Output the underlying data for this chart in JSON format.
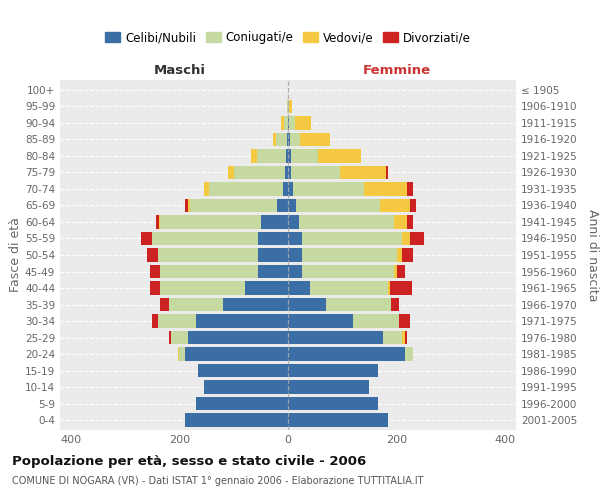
{
  "age_groups": [
    "0-4",
    "5-9",
    "10-14",
    "15-19",
    "20-24",
    "25-29",
    "30-34",
    "35-39",
    "40-44",
    "45-49",
    "50-54",
    "55-59",
    "60-64",
    "65-69",
    "70-74",
    "75-79",
    "80-84",
    "85-89",
    "90-94",
    "95-99",
    "100+"
  ],
  "birth_years": [
    "2001-2005",
    "1996-2000",
    "1991-1995",
    "1986-1990",
    "1981-1985",
    "1976-1980",
    "1971-1975",
    "1966-1970",
    "1961-1965",
    "1956-1960",
    "1951-1955",
    "1946-1950",
    "1941-1945",
    "1936-1940",
    "1931-1935",
    "1926-1930",
    "1921-1925",
    "1916-1920",
    "1911-1915",
    "1906-1910",
    "≤ 1905"
  ],
  "males": {
    "celibi": [
      190,
      170,
      155,
      165,
      190,
      185,
      170,
      120,
      80,
      55,
      55,
      55,
      50,
      20,
      10,
      5,
      3,
      2,
      0,
      0,
      0
    ],
    "coniugati": [
      0,
      0,
      0,
      0,
      10,
      30,
      70,
      100,
      155,
      180,
      185,
      195,
      185,
      160,
      135,
      95,
      55,
      20,
      8,
      2,
      0
    ],
    "vedovi": [
      0,
      0,
      0,
      0,
      3,
      0,
      0,
      0,
      0,
      0,
      0,
      0,
      3,
      5,
      10,
      10,
      10,
      5,
      5,
      0,
      0
    ],
    "divorziati": [
      0,
      0,
      0,
      0,
      0,
      5,
      10,
      15,
      20,
      20,
      20,
      20,
      5,
      5,
      0,
      0,
      0,
      0,
      0,
      0,
      0
    ]
  },
  "females": {
    "nubili": [
      185,
      165,
      150,
      165,
      215,
      175,
      120,
      70,
      40,
      25,
      25,
      25,
      20,
      15,
      10,
      5,
      5,
      3,
      2,
      0,
      0
    ],
    "coniugate": [
      0,
      0,
      0,
      0,
      15,
      35,
      85,
      120,
      145,
      170,
      175,
      185,
      175,
      155,
      130,
      90,
      50,
      20,
      10,
      2,
      0
    ],
    "vedove": [
      0,
      0,
      0,
      0,
      0,
      5,
      0,
      0,
      3,
      5,
      10,
      15,
      25,
      55,
      80,
      85,
      80,
      55,
      30,
      5,
      0
    ],
    "divorziate": [
      0,
      0,
      0,
      0,
      0,
      5,
      20,
      15,
      40,
      15,
      20,
      25,
      10,
      10,
      10,
      5,
      0,
      0,
      0,
      0,
      0
    ]
  },
  "colors": {
    "celibi": "#3a6ea5",
    "coniugati": "#c5d9a0",
    "vedovi": "#f5c842",
    "divorziati": "#cc2222"
  },
  "title": "Popolazione per età, sesso e stato civile - 2006",
  "subtitle": "COMUNE DI NOGARA (VR) - Dati ISTAT 1° gennaio 2006 - Elaborazione TUTTITALIA.IT",
  "ylabel_left": "Fasce di età",
  "ylabel_right": "Anni di nascita",
  "xlabel_left": "Maschi",
  "xlabel_right": "Femmine",
  "xlim": 420,
  "background_color": "#ffffff",
  "plot_bg": "#ebebeb",
  "grid_color": "#ffffff"
}
